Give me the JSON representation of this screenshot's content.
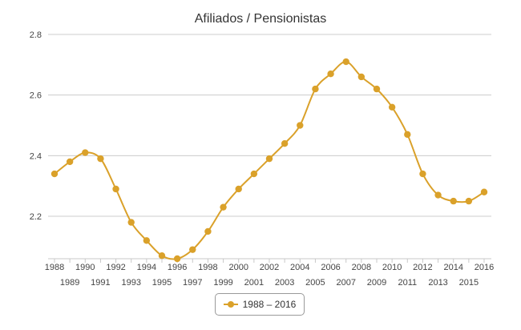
{
  "chart_data": {
    "type": "line",
    "title": "Afiliados / Pensionistas",
    "xlabel": "",
    "ylabel": "",
    "x": [
      1988,
      1989,
      1990,
      1991,
      1992,
      1993,
      1994,
      1995,
      1996,
      1997,
      1998,
      1999,
      2000,
      2001,
      2002,
      2003,
      2004,
      2005,
      2006,
      2007,
      2008,
      2009,
      2010,
      2011,
      2012,
      2013,
      2014,
      2015,
      2016
    ],
    "series": [
      {
        "name": "1988 – 2016",
        "color": "#daa12a",
        "values": [
          2.34,
          2.38,
          2.41,
          2.39,
          2.29,
          2.18,
          2.12,
          2.07,
          2.06,
          2.09,
          2.15,
          2.23,
          2.29,
          2.34,
          2.39,
          2.44,
          2.5,
          2.62,
          2.67,
          2.71,
          2.66,
          2.62,
          2.56,
          2.47,
          2.34,
          2.27,
          2.25,
          2.25,
          2.28
        ]
      }
    ],
    "yticks": [
      "2.2",
      "2.4",
      "2.6",
      "2.8"
    ],
    "ytick_values": [
      2.2,
      2.4,
      2.6,
      2.8
    ],
    "xticks": [
      "1988",
      "1989",
      "1990",
      "1991",
      "1992",
      "1993",
      "1994",
      "1995",
      "1996",
      "1997",
      "1998",
      "1999",
      "2000",
      "2001",
      "2002",
      "2003",
      "2004",
      "2005",
      "2006",
      "2007",
      "2008",
      "2009",
      "2010",
      "2011",
      "2012",
      "2013",
      "2014",
      "2015",
      "2016"
    ],
    "ylim": [
      2.06,
      2.8
    ],
    "grid": true,
    "legend_position": "bottom-center",
    "colors": {
      "series": "#daa12a",
      "grid": "#cccccc",
      "title": "#333333"
    }
  }
}
